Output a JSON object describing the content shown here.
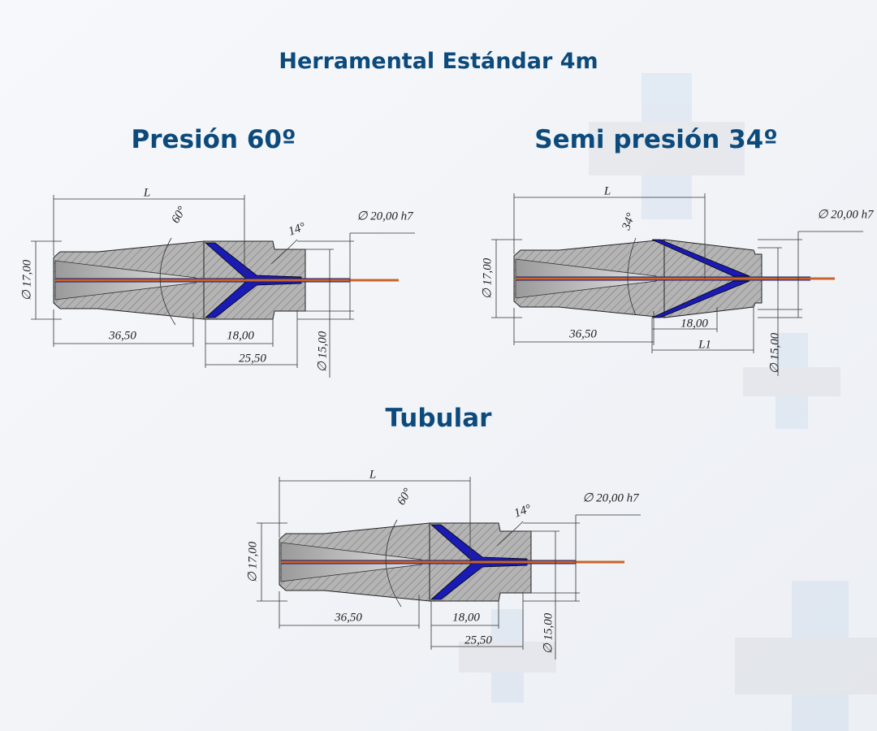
{
  "header": {
    "title": "Herramental Estándar 4m"
  },
  "diagrams": [
    {
      "title": "Presión 60º",
      "variant": "pressure",
      "labels": {
        "length": "L",
        "cone_angle": "60°",
        "outlet_angle": "14°",
        "outer_diameter": "∅ 20,00 h7",
        "body_diameter": "∅ 17,00",
        "body_length": "36,50",
        "die_length": "18,00",
        "total_die_length": "25,50",
        "inner_diameter": "∅ 15,00"
      }
    },
    {
      "title": "Semi presión 34º",
      "variant": "semi",
      "labels": {
        "length": "L",
        "cone_angle": "34°",
        "outer_diameter": "∅ 20,00 h7",
        "body_diameter": "∅ 17,00",
        "body_length": "36,50",
        "die_length": "18,00",
        "die_offset_length": "L1",
        "inner_diameter": "∅ 15,00"
      }
    },
    {
      "title": "Tubular",
      "variant": "pressure",
      "labels": {
        "length": "L",
        "cone_angle": "60°",
        "outlet_angle": "14°",
        "outer_diameter": "∅ 20,00 h7",
        "body_diameter": "∅ 17,00",
        "body_length": "36,50",
        "die_length": "18,00",
        "total_die_length": "25,50",
        "inner_diameter": "∅ 15,00"
      }
    }
  ]
}
